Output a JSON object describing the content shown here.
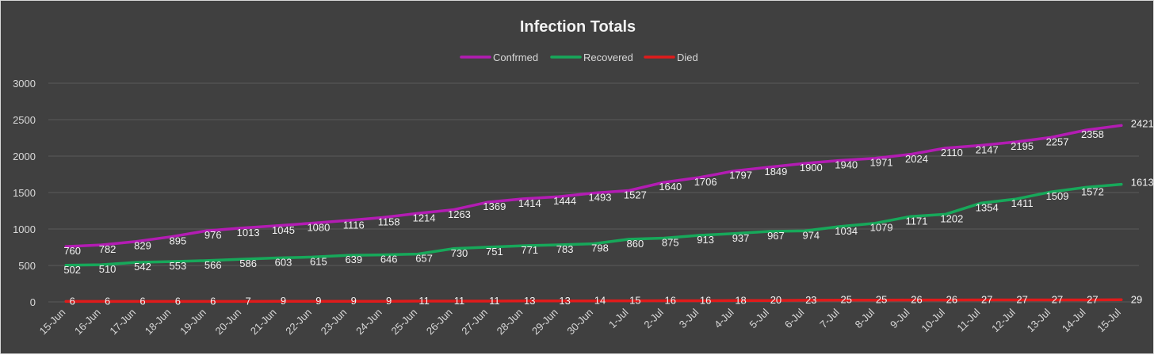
{
  "chart_data": {
    "type": "line",
    "title": "Infection Totals",
    "xlabel": "",
    "ylabel": "",
    "ylim": [
      0,
      3000
    ],
    "yticks": [
      0,
      500,
      1000,
      1500,
      2000,
      2500,
      3000
    ],
    "grid": true,
    "legend": "top",
    "categories": [
      "15-Jun",
      "16-Jun",
      "17-Jun",
      "18-Jun",
      "19-Jun",
      "20-Jun",
      "21-Jun",
      "22-Jun",
      "23-Jun",
      "24-Jun",
      "25-Jun",
      "26-Jun",
      "27-Jun",
      "28-Jun",
      "29-Jun",
      "30-Jun",
      "1-Jul",
      "2-Jul",
      "3-Jul",
      "4-Jul",
      "5-Jul",
      "6-Jul",
      "7-Jul",
      "8-Jul",
      "9-Jul",
      "10-Jul",
      "11-Jul",
      "12-Jul",
      "13-Jul",
      "14-Jul",
      "15-Jul"
    ],
    "series": [
      {
        "name": "Confrmed",
        "color": "#b31cb3",
        "values": [
          760,
          782,
          829,
          895,
          976,
          1013,
          1045,
          1080,
          1116,
          1158,
          1214,
          1263,
          1369,
          1414,
          1444,
          1493,
          1527,
          1640,
          1706,
          1797,
          1849,
          1900,
          1940,
          1971,
          2024,
          2110,
          2147,
          2195,
          2257,
          2358,
          2421
        ]
      },
      {
        "name": "Recovered",
        "color": "#17a85a",
        "values": [
          502,
          510,
          542,
          553,
          566,
          586,
          603,
          615,
          639,
          646,
          657,
          730,
          751,
          771,
          783,
          798,
          860,
          875,
          913,
          937,
          967,
          974,
          1034,
          1079,
          1171,
          1202,
          1354,
          1411,
          1509,
          1572,
          1613
        ]
      },
      {
        "name": "Died",
        "color": "#e01b1b",
        "values": [
          6,
          6,
          6,
          6,
          6,
          7,
          9,
          9,
          9,
          9,
          11,
          11,
          11,
          13,
          13,
          14,
          15,
          16,
          16,
          18,
          20,
          23,
          25,
          25,
          26,
          26,
          27,
          27,
          27,
          27,
          29
        ]
      }
    ]
  },
  "style": {
    "background": "#404040",
    "gridline": "#5a5a5a",
    "text": "#d9d9d9"
  }
}
